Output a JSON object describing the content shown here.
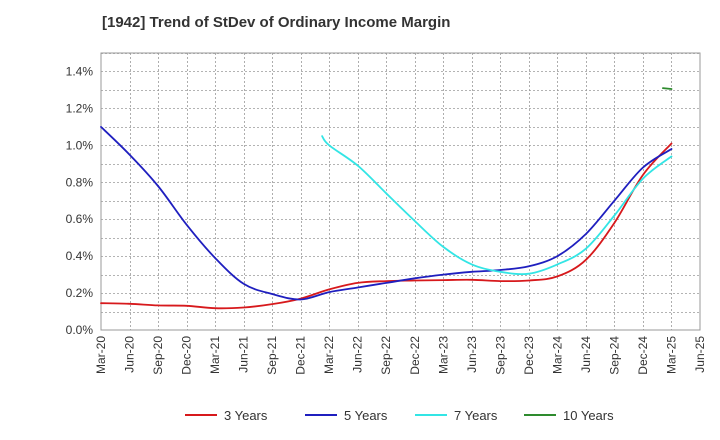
{
  "chart_data": {
    "type": "line",
    "title": "[1942]  Trend of StDev of Ordinary Income Margin",
    "xlabel": "",
    "ylabel": "",
    "x_ticks": [
      "Mar-20",
      "Jun-20",
      "Sep-20",
      "Dec-20",
      "Mar-21",
      "Jun-21",
      "Sep-21",
      "Dec-21",
      "Mar-22",
      "Jun-22",
      "Sep-22",
      "Dec-22",
      "Mar-23",
      "Jun-23",
      "Sep-23",
      "Dec-23",
      "Mar-24",
      "Jun-24",
      "Sep-24",
      "Dec-24",
      "Mar-25",
      "Jun-25"
    ],
    "y_ticks": [
      "0.0%",
      "0.2%",
      "0.4%",
      "0.6%",
      "0.8%",
      "1.0%",
      "1.2%",
      "1.4%"
    ],
    "ylim": [
      0,
      1.5
    ],
    "grid": true,
    "legend_position": "bottom",
    "series": [
      {
        "name": "3 Years",
        "color": "#d7191c",
        "x": [
          0,
          1,
          2,
          3,
          4,
          5,
          6,
          7,
          8,
          9,
          10,
          11,
          12,
          13,
          14,
          15,
          16,
          17,
          18,
          19,
          20
        ],
        "values": [
          0.145,
          0.142,
          0.133,
          0.131,
          0.118,
          0.122,
          0.14,
          0.17,
          0.22,
          0.255,
          0.265,
          0.268,
          0.27,
          0.272,
          0.265,
          0.268,
          0.29,
          0.38,
          0.58,
          0.84,
          1.01
        ]
      },
      {
        "name": "5 Years",
        "color": "#1f1fbf",
        "x": [
          0,
          1,
          2,
          3,
          4,
          5,
          6,
          7,
          8,
          9,
          10,
          11,
          12,
          13,
          14,
          15,
          16,
          17,
          18,
          19,
          20
        ],
        "values": [
          1.1,
          0.95,
          0.78,
          0.57,
          0.39,
          0.25,
          0.195,
          0.165,
          0.205,
          0.23,
          0.255,
          0.28,
          0.3,
          0.315,
          0.325,
          0.345,
          0.4,
          0.52,
          0.7,
          0.88,
          0.98
        ]
      },
      {
        "name": "7 Years",
        "color": "#33e5e5",
        "x": [
          7.75,
          8,
          9,
          10,
          11,
          12,
          13,
          14,
          15,
          16,
          17,
          18,
          19,
          20
        ],
        "values": [
          1.05,
          1.0,
          0.89,
          0.74,
          0.59,
          0.45,
          0.355,
          0.315,
          0.305,
          0.355,
          0.44,
          0.62,
          0.82,
          0.94
        ]
      },
      {
        "name": "10 Years",
        "color": "#2e8b2e",
        "x": [
          19.7,
          20
        ],
        "values": [
          1.31,
          1.305
        ]
      }
    ]
  }
}
